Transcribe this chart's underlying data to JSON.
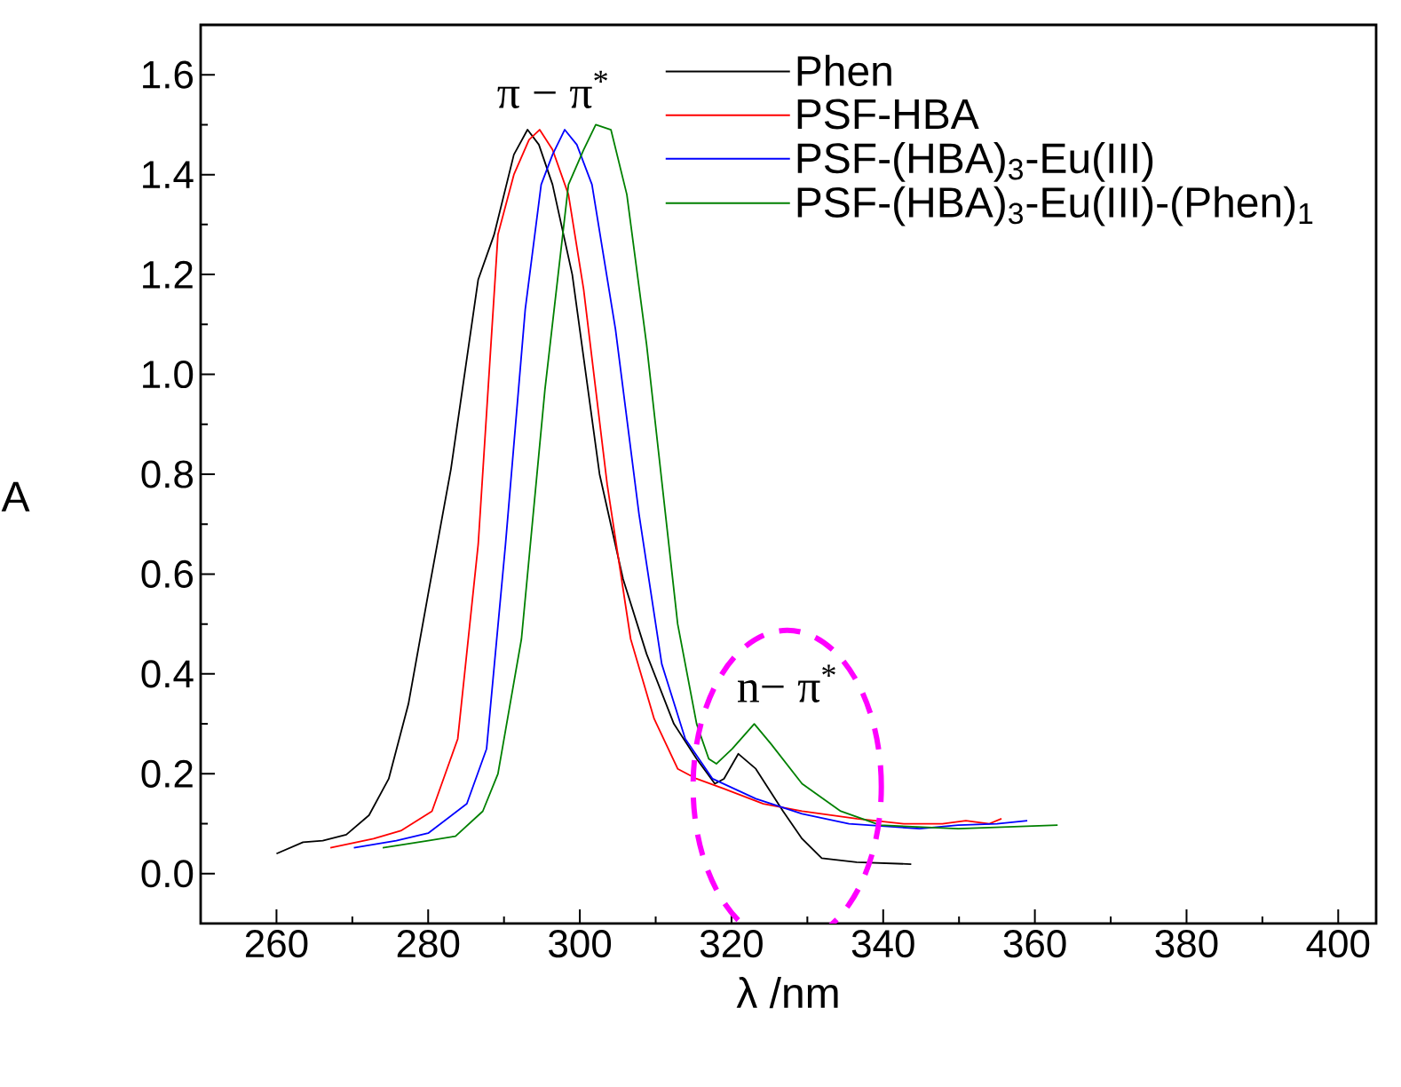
{
  "chart_data": {
    "type": "line",
    "xlabel": "λ /nm",
    "ylabel": "A",
    "xlim": [
      250,
      405
    ],
    "xticks": [
      260,
      280,
      300,
      320,
      340,
      360,
      380,
      400
    ],
    "ylim": [
      -0.1,
      1.7
    ],
    "yticks": [
      {
        "value": 0,
        "label": "0.0"
      },
      0.2,
      0.4,
      0.6,
      0.8,
      {
        "value": 1,
        "label": "1.0"
      },
      1.2,
      1.4,
      1.6
    ],
    "legend": "top right",
    "grid": false,
    "annotations": [
      "π − π$^{*}$",
      "n− π$^{*}$"
    ],
    "series": [
      {
        "name": "Phen",
        "color": "#000000",
        "x": [
          260,
          263.5,
          266.1,
          269.2,
          272.2,
          274.8,
          277.4,
          280,
          283,
          286.6,
          288.7,
          291.3,
          293.1,
          294.6,
          296.4,
          299,
          302.6,
          305.7,
          308.8,
          312.4,
          315.4,
          317.8,
          319,
          320.9,
          323.2,
          326.8,
          329.3,
          331.9,
          336.5,
          343.7
        ],
        "values": [
          0.04,
          0.063,
          0.066,
          0.078,
          0.117,
          0.19,
          0.34,
          0.56,
          0.81,
          1.19,
          1.28,
          1.44,
          1.49,
          1.46,
          1.38,
          1.2,
          0.8,
          0.59,
          0.44,
          0.3,
          0.23,
          0.18,
          0.19,
          0.24,
          0.21,
          0.125,
          0.07,
          0.031,
          0.023,
          0.019
        ]
      },
      {
        "name": "PSF-HBA",
        "color": "#ff0000",
        "x": [
          267.1,
          272.8,
          276.4,
          280.5,
          283.9,
          286.6,
          289.2,
          291.3,
          293.3,
          294.7,
          296.4,
          298.5,
          300.5,
          303.6,
          306.7,
          309.8,
          312.9,
          315.4,
          319,
          324.2,
          329.3,
          336.5,
          342.7,
          347.8,
          350.9,
          354,
          355.6
        ],
        "values": [
          0.052,
          0.07,
          0.086,
          0.125,
          0.27,
          0.66,
          1.28,
          1.4,
          1.47,
          1.49,
          1.45,
          1.36,
          1.17,
          0.78,
          0.47,
          0.31,
          0.21,
          0.19,
          0.17,
          0.14,
          0.125,
          0.11,
          0.1,
          0.1,
          0.106,
          0.1,
          0.11
        ]
      },
      {
        "name": "PSF-(HBA)$_{3}$-Eu(III)",
        "color": "#0000ff",
        "x": [
          270.2,
          275.8,
          280,
          285.1,
          287.7,
          290.2,
          292.8,
          294.9,
          296.4,
          298,
          299.6,
          301.6,
          304.7,
          307.8,
          310.8,
          313.9,
          317.5,
          323.2,
          329.3,
          335.5,
          344.8,
          349.9,
          355,
          359
        ],
        "values": [
          0.052,
          0.066,
          0.081,
          0.14,
          0.25,
          0.66,
          1.13,
          1.38,
          1.44,
          1.49,
          1.46,
          1.38,
          1.09,
          0.72,
          0.42,
          0.27,
          0.19,
          0.15,
          0.12,
          0.1,
          0.09,
          0.097,
          0.1,
          0.106
        ]
      },
      {
        "name": "PSF-(HBA)$_{3}$-Eu(III)-(Phen)$_{1}$",
        "color": "#008000",
        "x": [
          274,
          280,
          283.6,
          287.2,
          289.2,
          292.3,
          295.4,
          298.5,
          300.5,
          302.1,
          304.1,
          306.2,
          308.8,
          312.9,
          315.4,
          317,
          318,
          320.1,
          323,
          325.2,
          329.3,
          334.4,
          339.6,
          349.9,
          363
        ],
        "values": [
          0.052,
          0.066,
          0.075,
          0.125,
          0.2,
          0.47,
          0.97,
          1.38,
          1.45,
          1.5,
          1.49,
          1.36,
          1.06,
          0.5,
          0.3,
          0.23,
          0.22,
          0.25,
          0.3,
          0.26,
          0.18,
          0.125,
          0.097,
          0.09,
          0.097
        ]
      }
    ]
  }
}
